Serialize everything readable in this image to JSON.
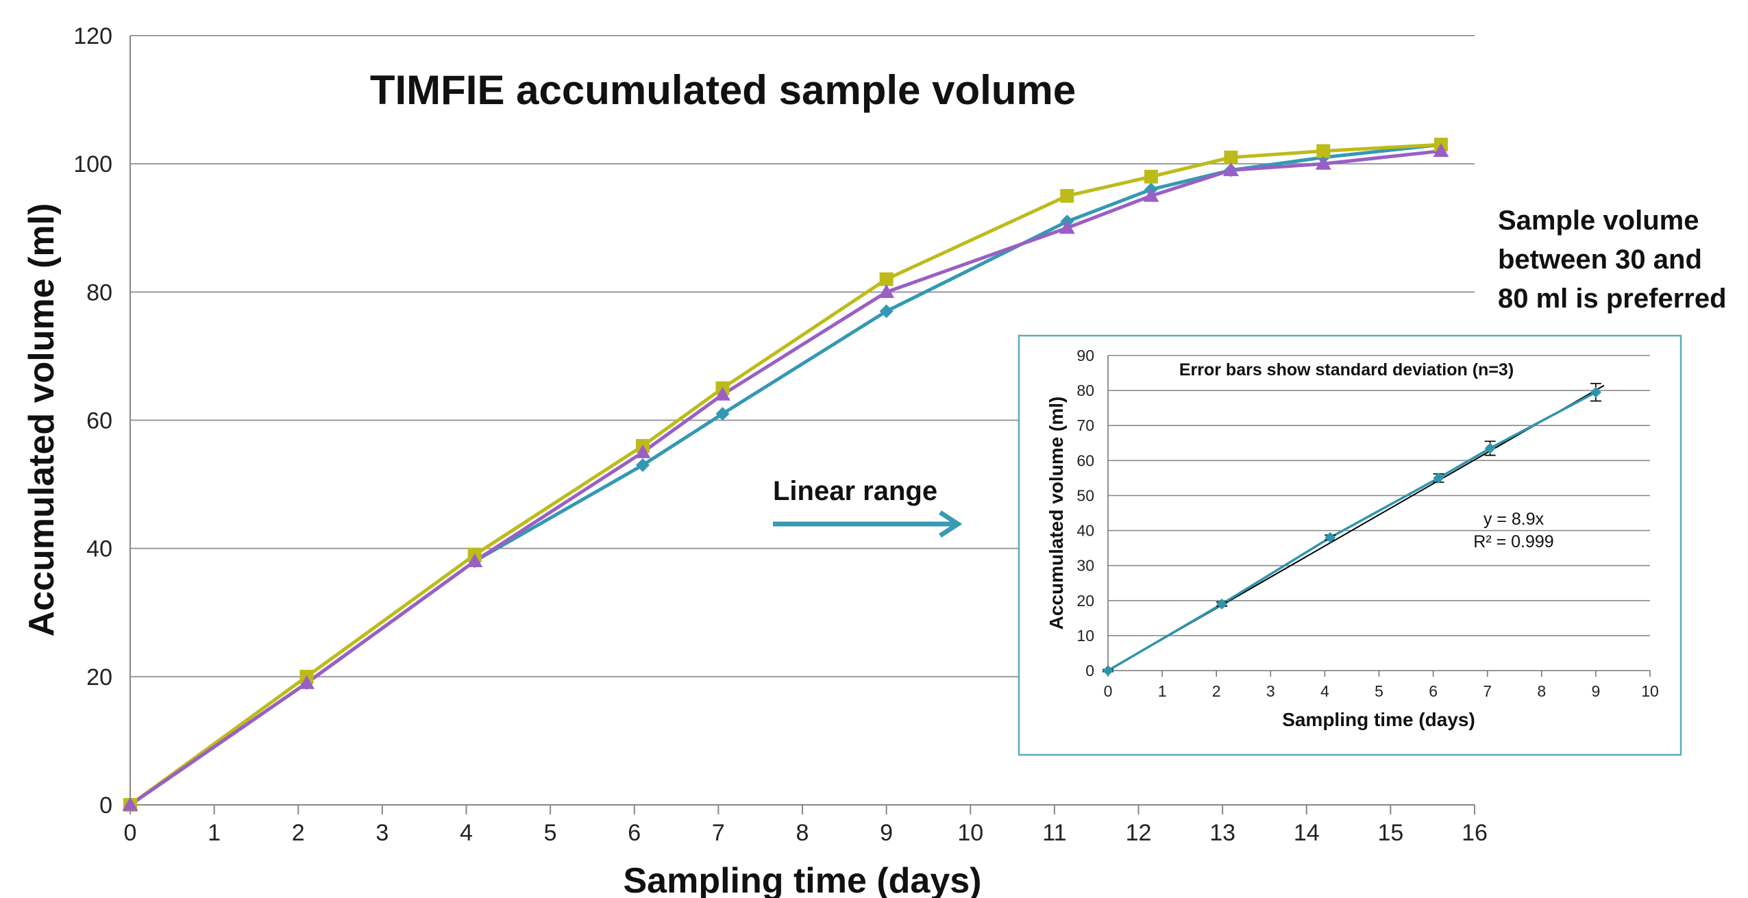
{
  "chart_data": [
    {
      "type": "line",
      "title": "TIMFIE accumulated sample volume",
      "xlabel": "Sampling time (days)",
      "ylabel": "Accumulated volume (ml)",
      "xlim": [
        0,
        16
      ],
      "ylim": [
        0,
        120
      ],
      "xticks": [
        "0",
        "1",
        "2",
        "3",
        "4",
        "5",
        "6",
        "7",
        "8",
        "9",
        "10",
        "11",
        "12",
        "13",
        "14",
        "15",
        "16"
      ],
      "yticks": [
        "0",
        "20",
        "40",
        "60",
        "80",
        "100",
        "120"
      ],
      "grid": "horizontal",
      "legend": "none",
      "series": [
        {
          "marker": "diamond",
          "color": "#3399b3",
          "x": [
            0,
            2.1,
            4.1,
            6.1,
            7.05,
            9.0,
            11.15,
            12.15,
            13.1,
            14.2,
            15.6
          ],
          "y": [
            0,
            19,
            38,
            53,
            61,
            77,
            91,
            96,
            99,
            101,
            103
          ]
        },
        {
          "marker": "square",
          "color": "#bdbb19",
          "x": [
            0,
            2.1,
            4.1,
            6.1,
            7.05,
            9.0,
            11.15,
            12.15,
            13.1,
            14.2,
            15.6
          ],
          "y": [
            0,
            20,
            39,
            56,
            65,
            82,
            95,
            98,
            101,
            102,
            103
          ]
        },
        {
          "marker": "triangle",
          "color": "#9a5fc4",
          "x": [
            0,
            2.1,
            4.1,
            6.1,
            7.05,
            9.0,
            11.15,
            12.15,
            13.1,
            14.2,
            15.6
          ],
          "y": [
            0,
            19,
            38,
            55,
            64,
            80,
            90,
            95,
            99,
            100,
            102
          ]
        }
      ],
      "annotations": {
        "side_note": [
          "Sample volume",
          "between 30 and",
          "80 ml is preferred"
        ],
        "arrow_label": "Linear range",
        "arrow_color": "#3a9ab3"
      }
    },
    {
      "type": "scatter",
      "title": "Error bars show standard deviation (n=3)",
      "xlabel": "Sampling time (days)",
      "ylabel": "Accumulated volume (ml)",
      "xlim": [
        0,
        10
      ],
      "ylim": [
        0,
        90
      ],
      "xticks": [
        "0",
        "1",
        "2",
        "3",
        "4",
        "5",
        "6",
        "7",
        "8",
        "9",
        "10"
      ],
      "yticks": [
        "0",
        "10",
        "20",
        "30",
        "40",
        "50",
        "60",
        "70",
        "80",
        "90"
      ],
      "grid": "horizontal",
      "border_color": "#5aaeb8",
      "series": [
        {
          "marker": "diamond",
          "color": "#2f95ad",
          "x": [
            0,
            2.1,
            4.1,
            6.1,
            7.05,
            9.0
          ],
          "y": [
            0,
            19,
            38,
            55,
            63.5,
            79.5
          ],
          "error": [
            0.3,
            0.6,
            0.7,
            1.2,
            2.0,
            2.5
          ]
        }
      ],
      "trendline": {
        "slope": 8.9,
        "intercept": 0,
        "color": "#000000"
      },
      "trendline_labels": [
        "y = 8.9x",
        "R² = 0.999"
      ]
    }
  ]
}
